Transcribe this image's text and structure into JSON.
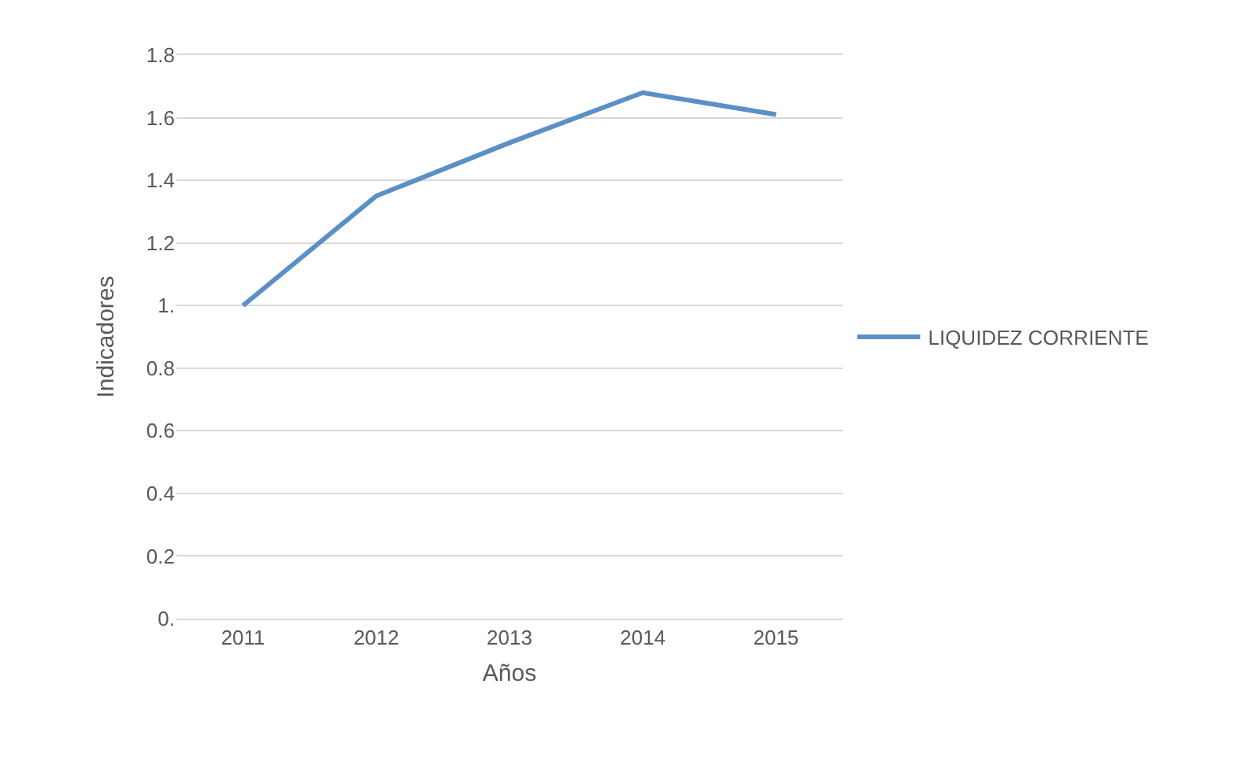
{
  "chart_data": {
    "type": "line",
    "xlabel": "Años",
    "ylabel": "Indicadores",
    "categories": [
      "2011",
      "2012",
      "2013",
      "2014",
      "2015"
    ],
    "series": [
      {
        "name": "LIQUIDEZ CORRIENTE",
        "color": "#5b8fc7",
        "values": [
          1.0,
          1.35,
          1.52,
          1.68,
          1.61
        ]
      }
    ],
    "ylim": [
      0,
      1.8
    ],
    "yticks": [
      {
        "value": 0,
        "label": "0."
      },
      0.2,
      0.4,
      0.6,
      0.8,
      {
        "value": 1,
        "label": "1."
      },
      1.2,
      1.4,
      1.6,
      1.8
    ],
    "grid": "y",
    "legend": "right",
    "marker": "none",
    "line_style": "solid"
  }
}
